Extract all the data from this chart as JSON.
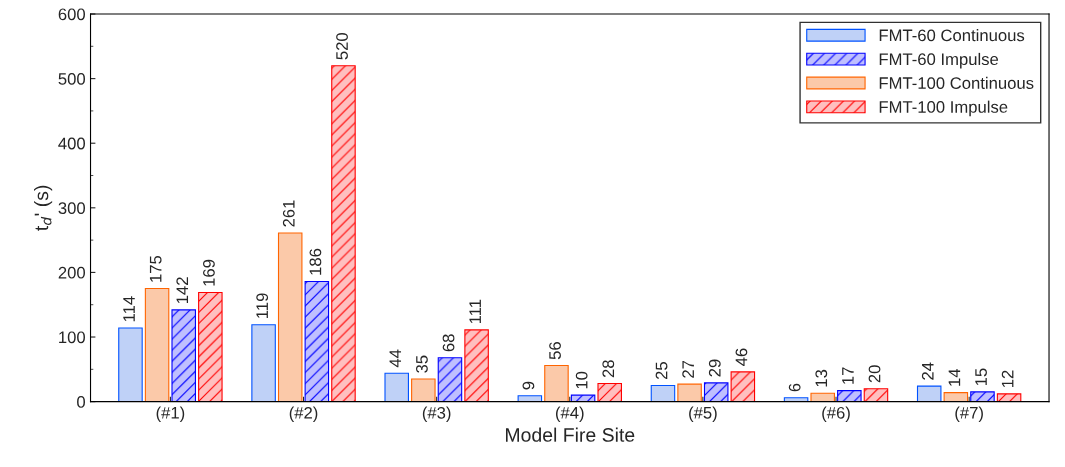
{
  "chart_data": {
    "type": "bar",
    "xlabel": "Model Fire Site",
    "ylabel": "t$_{d}$' (s)",
    "categories": [
      "(#1)",
      "(#2)",
      "(#3)",
      "(#4)",
      "(#5)",
      "(#6)",
      "(#7)"
    ],
    "series": [
      {
        "name": "FMT-60 Continuous",
        "color": "#bfd1f7",
        "values": [
          114,
          119,
          44,
          9,
          25,
          6,
          24
        ]
      },
      {
        "name": "FMT-100 Continuous",
        "color": "#fbc9a9",
        "values": [
          175,
          261,
          35,
          56,
          27,
          13,
          14
        ]
      },
      {
        "name": "FMT-60 Impulse",
        "color": "#0000ff",
        "values": [
          142,
          186,
          68,
          10,
          29,
          17,
          15
        ]
      },
      {
        "name": "FMT-100 Impulse",
        "color": "#ff0000",
        "values": [
          169,
          520,
          111,
          28,
          46,
          20,
          12
        ]
      }
    ],
    "ylim": [
      0,
      600
    ],
    "yticks": [
      0,
      100,
      200,
      300,
      400,
      500,
      600
    ],
    "data_labels": true,
    "grid": false,
    "legend": "top right"
  }
}
